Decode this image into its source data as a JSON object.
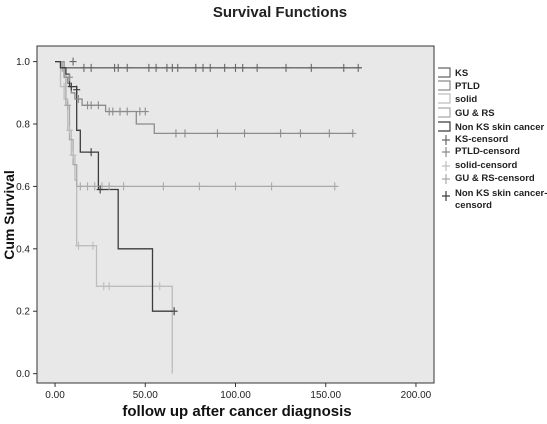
{
  "chart_data": {
    "type": "line",
    "title": "Survival Functions",
    "xlabel": "follow up after cancer diagnosis",
    "ylabel": "Cum Survival",
    "xlim": [
      -10,
      210
    ],
    "ylim": [
      -0.03,
      1.05
    ],
    "x_ticks": [
      "0.00",
      "50.00",
      "100.00",
      "150.00",
      "200.00"
    ],
    "y_ticks": [
      "0.0",
      "0.2",
      "0.4",
      "0.6",
      "0.8",
      "1.0"
    ],
    "plot_background": "#e8e8e8",
    "grid": false,
    "legend_position": "right",
    "series": [
      {
        "name": "KS",
        "color": "#666666",
        "steps": [
          [
            0,
            1.0
          ],
          [
            3,
            0.98
          ],
          [
            170,
            0.98
          ]
        ],
        "censored": [
          [
            10,
            1.0
          ],
          [
            16,
            0.98
          ],
          [
            20,
            0.98
          ],
          [
            33,
            0.98
          ],
          [
            35,
            0.98
          ],
          [
            40,
            0.98
          ],
          [
            52,
            0.98
          ],
          [
            56,
            0.98
          ],
          [
            62,
            0.98
          ],
          [
            65,
            0.98
          ],
          [
            68,
            0.98
          ],
          [
            78,
            0.98
          ],
          [
            82,
            0.98
          ],
          [
            86,
            0.98
          ],
          [
            94,
            0.98
          ],
          [
            100,
            0.98
          ],
          [
            104,
            0.98
          ],
          [
            112,
            0.98
          ],
          [
            128,
            0.98
          ],
          [
            142,
            0.98
          ],
          [
            160,
            0.98
          ],
          [
            168,
            0.98
          ]
        ]
      },
      {
        "name": "PTLD",
        "color": "#8c8c8c",
        "steps": [
          [
            0,
            1.0
          ],
          [
            5,
            0.95
          ],
          [
            7,
            0.93
          ],
          [
            9,
            0.9
          ],
          [
            11,
            0.88
          ],
          [
            15,
            0.86
          ],
          [
            28,
            0.84
          ],
          [
            45,
            0.8
          ],
          [
            55,
            0.77
          ],
          [
            65,
            0.77
          ],
          [
            165,
            0.77
          ]
        ],
        "censored": [
          [
            8,
            0.95
          ],
          [
            13,
            0.88
          ],
          [
            18,
            0.86
          ],
          [
            20,
            0.86
          ],
          [
            24,
            0.86
          ],
          [
            30,
            0.84
          ],
          [
            32,
            0.84
          ],
          [
            36,
            0.84
          ],
          [
            40,
            0.84
          ],
          [
            47,
            0.84
          ],
          [
            50,
            0.84
          ],
          [
            67,
            0.77
          ],
          [
            72,
            0.77
          ],
          [
            90,
            0.77
          ],
          [
            105,
            0.77
          ],
          [
            125,
            0.77
          ],
          [
            136,
            0.77
          ],
          [
            152,
            0.77
          ],
          [
            165,
            0.77
          ]
        ]
      },
      {
        "name": "solid",
        "color": "#bdbdbd",
        "steps": [
          [
            0,
            1.0
          ],
          [
            3,
            0.92
          ],
          [
            5,
            0.88
          ],
          [
            7,
            0.78
          ],
          [
            9,
            0.7
          ],
          [
            11,
            0.62
          ],
          [
            12,
            0.41
          ],
          [
            22,
            0.41
          ],
          [
            23,
            0.28
          ],
          [
            63,
            0.28
          ],
          [
            65,
            0.0
          ]
        ],
        "censored": [
          [
            5,
            0.92
          ],
          [
            8,
            0.78
          ],
          [
            10,
            0.7
          ],
          [
            13,
            0.41
          ],
          [
            21,
            0.41
          ],
          [
            27,
            0.28
          ],
          [
            30,
            0.28
          ],
          [
            58,
            0.28
          ]
        ]
      },
      {
        "name": "GU & RS",
        "color": "#a9a9a9",
        "steps": [
          [
            0,
            1.0
          ],
          [
            4,
            0.97
          ],
          [
            6,
            0.86
          ],
          [
            8,
            0.75
          ],
          [
            10,
            0.67
          ],
          [
            12,
            0.6
          ],
          [
            16,
            0.6
          ],
          [
            157,
            0.6
          ]
        ],
        "censored": [
          [
            7,
            0.86
          ],
          [
            14,
            0.6
          ],
          [
            18,
            0.6
          ],
          [
            22,
            0.6
          ],
          [
            26,
            0.6
          ],
          [
            30,
            0.6
          ],
          [
            38,
            0.6
          ],
          [
            60,
            0.6
          ],
          [
            80,
            0.6
          ],
          [
            100,
            0.6
          ],
          [
            120,
            0.6
          ],
          [
            155,
            0.6
          ]
        ]
      },
      {
        "name": "Non KS skin cancer",
        "color": "#3c3c3c",
        "steps": [
          [
            0,
            1.0
          ],
          [
            3,
            0.98
          ],
          [
            6,
            0.96
          ],
          [
            8,
            0.92
          ],
          [
            12,
            0.78
          ],
          [
            14,
            0.71
          ],
          [
            24,
            0.59
          ],
          [
            34,
            0.59
          ],
          [
            35,
            0.4
          ],
          [
            53,
            0.4
          ],
          [
            54,
            0.2
          ],
          [
            65,
            0.2
          ]
        ],
        "censored": [
          [
            9,
            0.92
          ],
          [
            12,
            0.91
          ],
          [
            20,
            0.71
          ],
          [
            25,
            0.59
          ],
          [
            66,
            0.2
          ]
        ]
      }
    ],
    "legend": [
      "KS",
      "PTLD",
      "solid",
      "GU & RS",
      "Non KS skin cancer",
      "KS-censord",
      "PTLD-censord",
      "solid-censord",
      "GU & RS-censord",
      "Non KS skin cancer-censord"
    ]
  }
}
